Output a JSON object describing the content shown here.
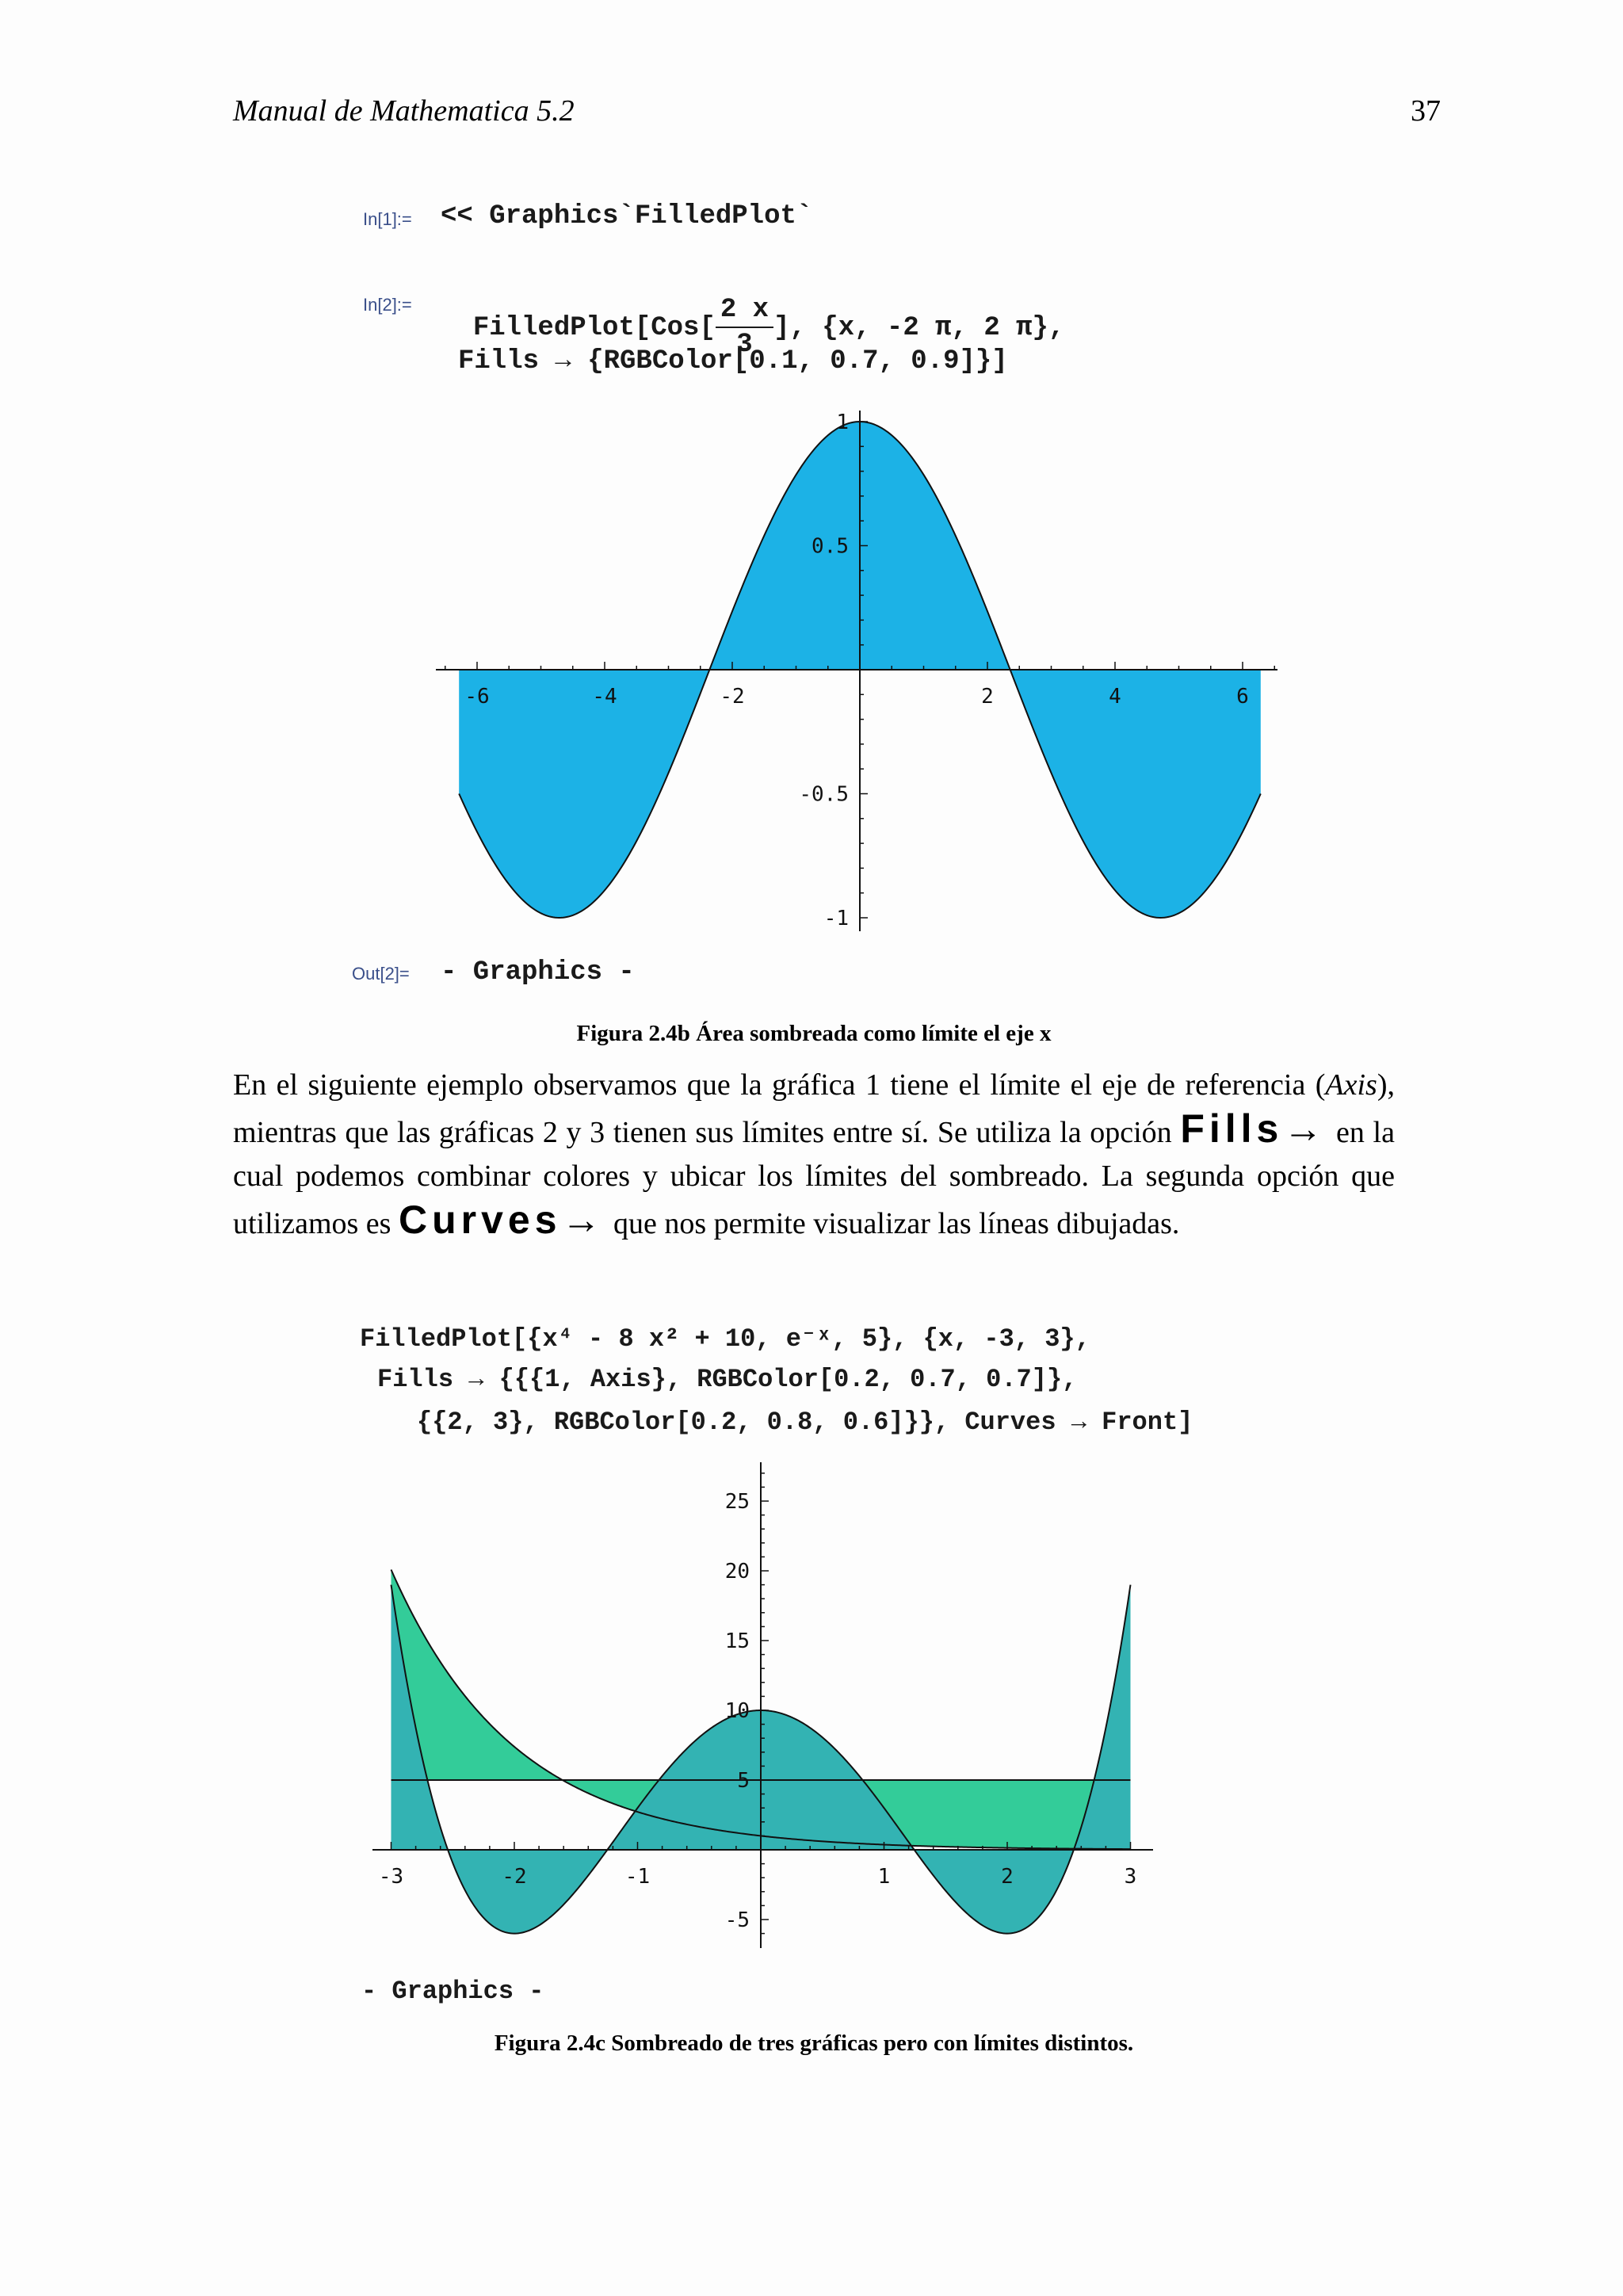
{
  "header": {
    "title": "Manual de Mathematica 5.2",
    "page_number": "37"
  },
  "notebook1": {
    "in1_prompt": "In[1]:=",
    "in1_code": "<< Graphics`FilledPlot`",
    "in2_prompt": "In[2]:=",
    "in2_fn": "FilledPlot[Cos[",
    "in2_frac_num": "2 x",
    "in2_frac_den": "3",
    "in2_rest": "], {x, -2 π, 2 π},",
    "in2_line2": "Fills → {RGBColor[0.1, 0.7, 0.9]}]",
    "out_prompt": "Out[2]=",
    "out_text": "- Graphics -"
  },
  "caption1": "Figura 2.4b Área sombreada como límite el eje x",
  "paragraph": {
    "p1": "En el siguiente ejemplo observamos que la gráfica 1 tiene el límite el eje de referencia (",
    "axis_word": "Axis",
    "p2": "), mientras que las gráficas 2 y 3 tienen sus límites entre sí. Se utiliza la opción ",
    "fills_kw": "Fills→",
    "p3": " en la cual podemos combinar colores y ubicar los límites del sombreado. La segunda opción que utilizamos es ",
    "curves_kw": "Curves→",
    "p4": " que nos permite visualizar las líneas dibujadas."
  },
  "notebook2": {
    "line1": "FilledPlot[{x⁴ - 8 x² + 10, e⁻ˣ, 5}, {x, -3, 3},",
    "line2": "Fills → {{{1, Axis}, RGBColor[0.2, 0.7, 0.7]},",
    "line3": "{{2, 3}, RGBColor[0.2, 0.8, 0.6]}}, Curves → Front]",
    "out_text": "- Graphics -"
  },
  "caption2": "Figura 2.4c Sombreado de tres gráficas pero con límites distintos.",
  "chart_data": [
    {
      "type": "area",
      "functions": [
        "Cos[2x/3]"
      ],
      "x_range": [
        -6.2832,
        6.2832
      ],
      "y_range": [
        -1,
        1
      ],
      "fill_to": "axis",
      "fill_color": "#1cb2e6",
      "x_ticks": [
        "-6",
        "-4",
        "-2",
        "2",
        "4",
        "6"
      ],
      "y_ticks": [
        "-1",
        "-0.5",
        "0.5",
        "1"
      ],
      "x_tick_values": [
        -6,
        -4,
        -2,
        2,
        4,
        6
      ],
      "y_tick_values": [
        -1,
        -0.5,
        0.5,
        1
      ]
    },
    {
      "type": "area",
      "functions": [
        "x^4 - 8x^2 + 10",
        "e^-x",
        "5"
      ],
      "x_range": [
        -3,
        3
      ],
      "y_range": [
        -6,
        27
      ],
      "fills": [
        {
          "between": [
            "1",
            "Axis"
          ],
          "color": "#33b3b3"
        },
        {
          "between": [
            "2",
            "3"
          ],
          "color": "#33cc99"
        }
      ],
      "x_ticks": [
        "-3",
        "-2",
        "-1",
        "1",
        "2",
        "3"
      ],
      "y_ticks": [
        "-5",
        "5",
        "10",
        "15",
        "20",
        "25"
      ],
      "x_tick_values": [
        -3,
        -2,
        -1,
        1,
        2,
        3
      ],
      "y_tick_values": [
        -5,
        5,
        10,
        15,
        20,
        25
      ]
    }
  ]
}
